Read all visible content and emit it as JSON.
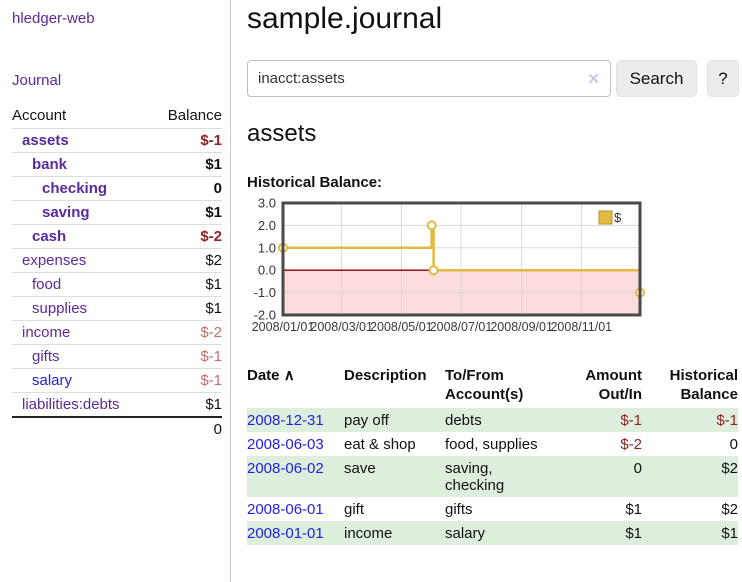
{
  "sidebar": {
    "brand": "hledger-web",
    "journal_link": "Journal",
    "accounts": {
      "header_account": "Account",
      "header_balance": "Balance",
      "rows": [
        {
          "name": "assets",
          "indent": 1,
          "bold": true,
          "balance": "$-1",
          "neg": "strong",
          "color": "purple"
        },
        {
          "name": "bank",
          "indent": 2,
          "bold": true,
          "balance": "$1",
          "neg": "none",
          "color": "purple"
        },
        {
          "name": "checking",
          "indent": 3,
          "bold": true,
          "balance": "0",
          "neg": "none",
          "color": "purple"
        },
        {
          "name": "saving",
          "indent": 3,
          "bold": true,
          "balance": "$1",
          "neg": "none",
          "color": "purple"
        },
        {
          "name": "cash",
          "indent": 2,
          "bold": true,
          "balance": "$-2",
          "neg": "strong",
          "color": "purple"
        },
        {
          "name": "expenses",
          "indent": 1,
          "bold": false,
          "balance": "$2",
          "neg": "none",
          "color": "purple"
        },
        {
          "name": "food",
          "indent": 2,
          "bold": false,
          "balance": "$1",
          "neg": "none",
          "color": "purple"
        },
        {
          "name": "supplies",
          "indent": 2,
          "bold": false,
          "balance": "$1",
          "neg": "none",
          "color": "purple"
        },
        {
          "name": "income",
          "indent": 1,
          "bold": false,
          "balance": "$-2",
          "neg": "soft",
          "color": "purple"
        },
        {
          "name": "gifts",
          "indent": 2,
          "bold": false,
          "balance": "$-1",
          "neg": "soft",
          "color": "purple"
        },
        {
          "name": "salary",
          "indent": 2,
          "bold": false,
          "balance": "$-1",
          "neg": "soft",
          "color": "blue"
        },
        {
          "name": "liabilities:debts",
          "indent": 1,
          "bold": false,
          "balance": "$1",
          "neg": "none",
          "color": "purple"
        }
      ],
      "total": "0"
    }
  },
  "main": {
    "title": "sample.journal",
    "search": {
      "value": "inacct:assets",
      "clear_icon": "✕",
      "search_button": "Search",
      "help_button": "?"
    },
    "heading": "assets",
    "chart_title": "Historical Balance:"
  },
  "chart_data": {
    "type": "line",
    "step": true,
    "title": "Historical Balance:",
    "series": [
      {
        "name": "$",
        "color": "#e3ba41",
        "points": [
          [
            "2008-01-01",
            1
          ],
          [
            "2008-06-01",
            2
          ],
          [
            "2008-06-02",
            2
          ],
          [
            "2008-06-03",
            0
          ],
          [
            "2008-12-31",
            -1
          ]
        ]
      }
    ],
    "x_range": [
      "2008-01-01",
      "2008-12-31"
    ],
    "x_ticks": [
      "2008/01/01",
      "2008/03/01",
      "2008/05/01",
      "2008/07/01",
      "2008/09/01",
      "2008/11/01"
    ],
    "y_ticks": [
      "3.0",
      "2.0",
      "1.0",
      "0.0",
      "-1.0",
      "-2.0"
    ],
    "ylim": [
      -2,
      3
    ],
    "legend": "$",
    "legend_position": "top-right",
    "grid": true,
    "negative_fill": "#fbdcdc",
    "zero_line_color": "#8b0000"
  },
  "register": {
    "headers": {
      "date": "Date",
      "sort_icon": "∧",
      "description": "Description",
      "account": "To/From Account(s)",
      "amount": "Amount Out/In",
      "balance": "Historical Balance"
    },
    "rows": [
      {
        "date": "2008-12-31",
        "description": "pay off",
        "account": "debts",
        "amount": "$-1",
        "amount_neg": true,
        "balance": "$-1",
        "balance_neg": true
      },
      {
        "date": "2008-06-03",
        "description": "eat & shop",
        "account": "food, supplies",
        "amount": "$-2",
        "amount_neg": true,
        "balance": "0",
        "balance_neg": false
      },
      {
        "date": "2008-06-02",
        "description": "save",
        "account": "saving, checking",
        "amount": "0",
        "amount_neg": false,
        "balance": "$2",
        "balance_neg": false
      },
      {
        "date": "2008-06-01",
        "description": "gift",
        "account": "gifts",
        "amount": "$1",
        "amount_neg": false,
        "balance": "$2",
        "balance_neg": false
      },
      {
        "date": "2008-01-01",
        "description": "income",
        "account": "salary",
        "amount": "$1",
        "amount_neg": false,
        "balance": "$1",
        "balance_neg": false
      }
    ]
  },
  "colors": {
    "link_purple": "#5b2a9d",
    "link_blue": "#2222dd",
    "negative_strong": "#8e2323",
    "negative_soft": "#c06f6f",
    "row_stripe_green": "#ddeedd",
    "chart_line_gold": "#e3ba41",
    "chart_negative_pink": "#fbdcdc",
    "chart_zero_line": "#8b0000",
    "chart_border": "#4a4a4a"
  }
}
